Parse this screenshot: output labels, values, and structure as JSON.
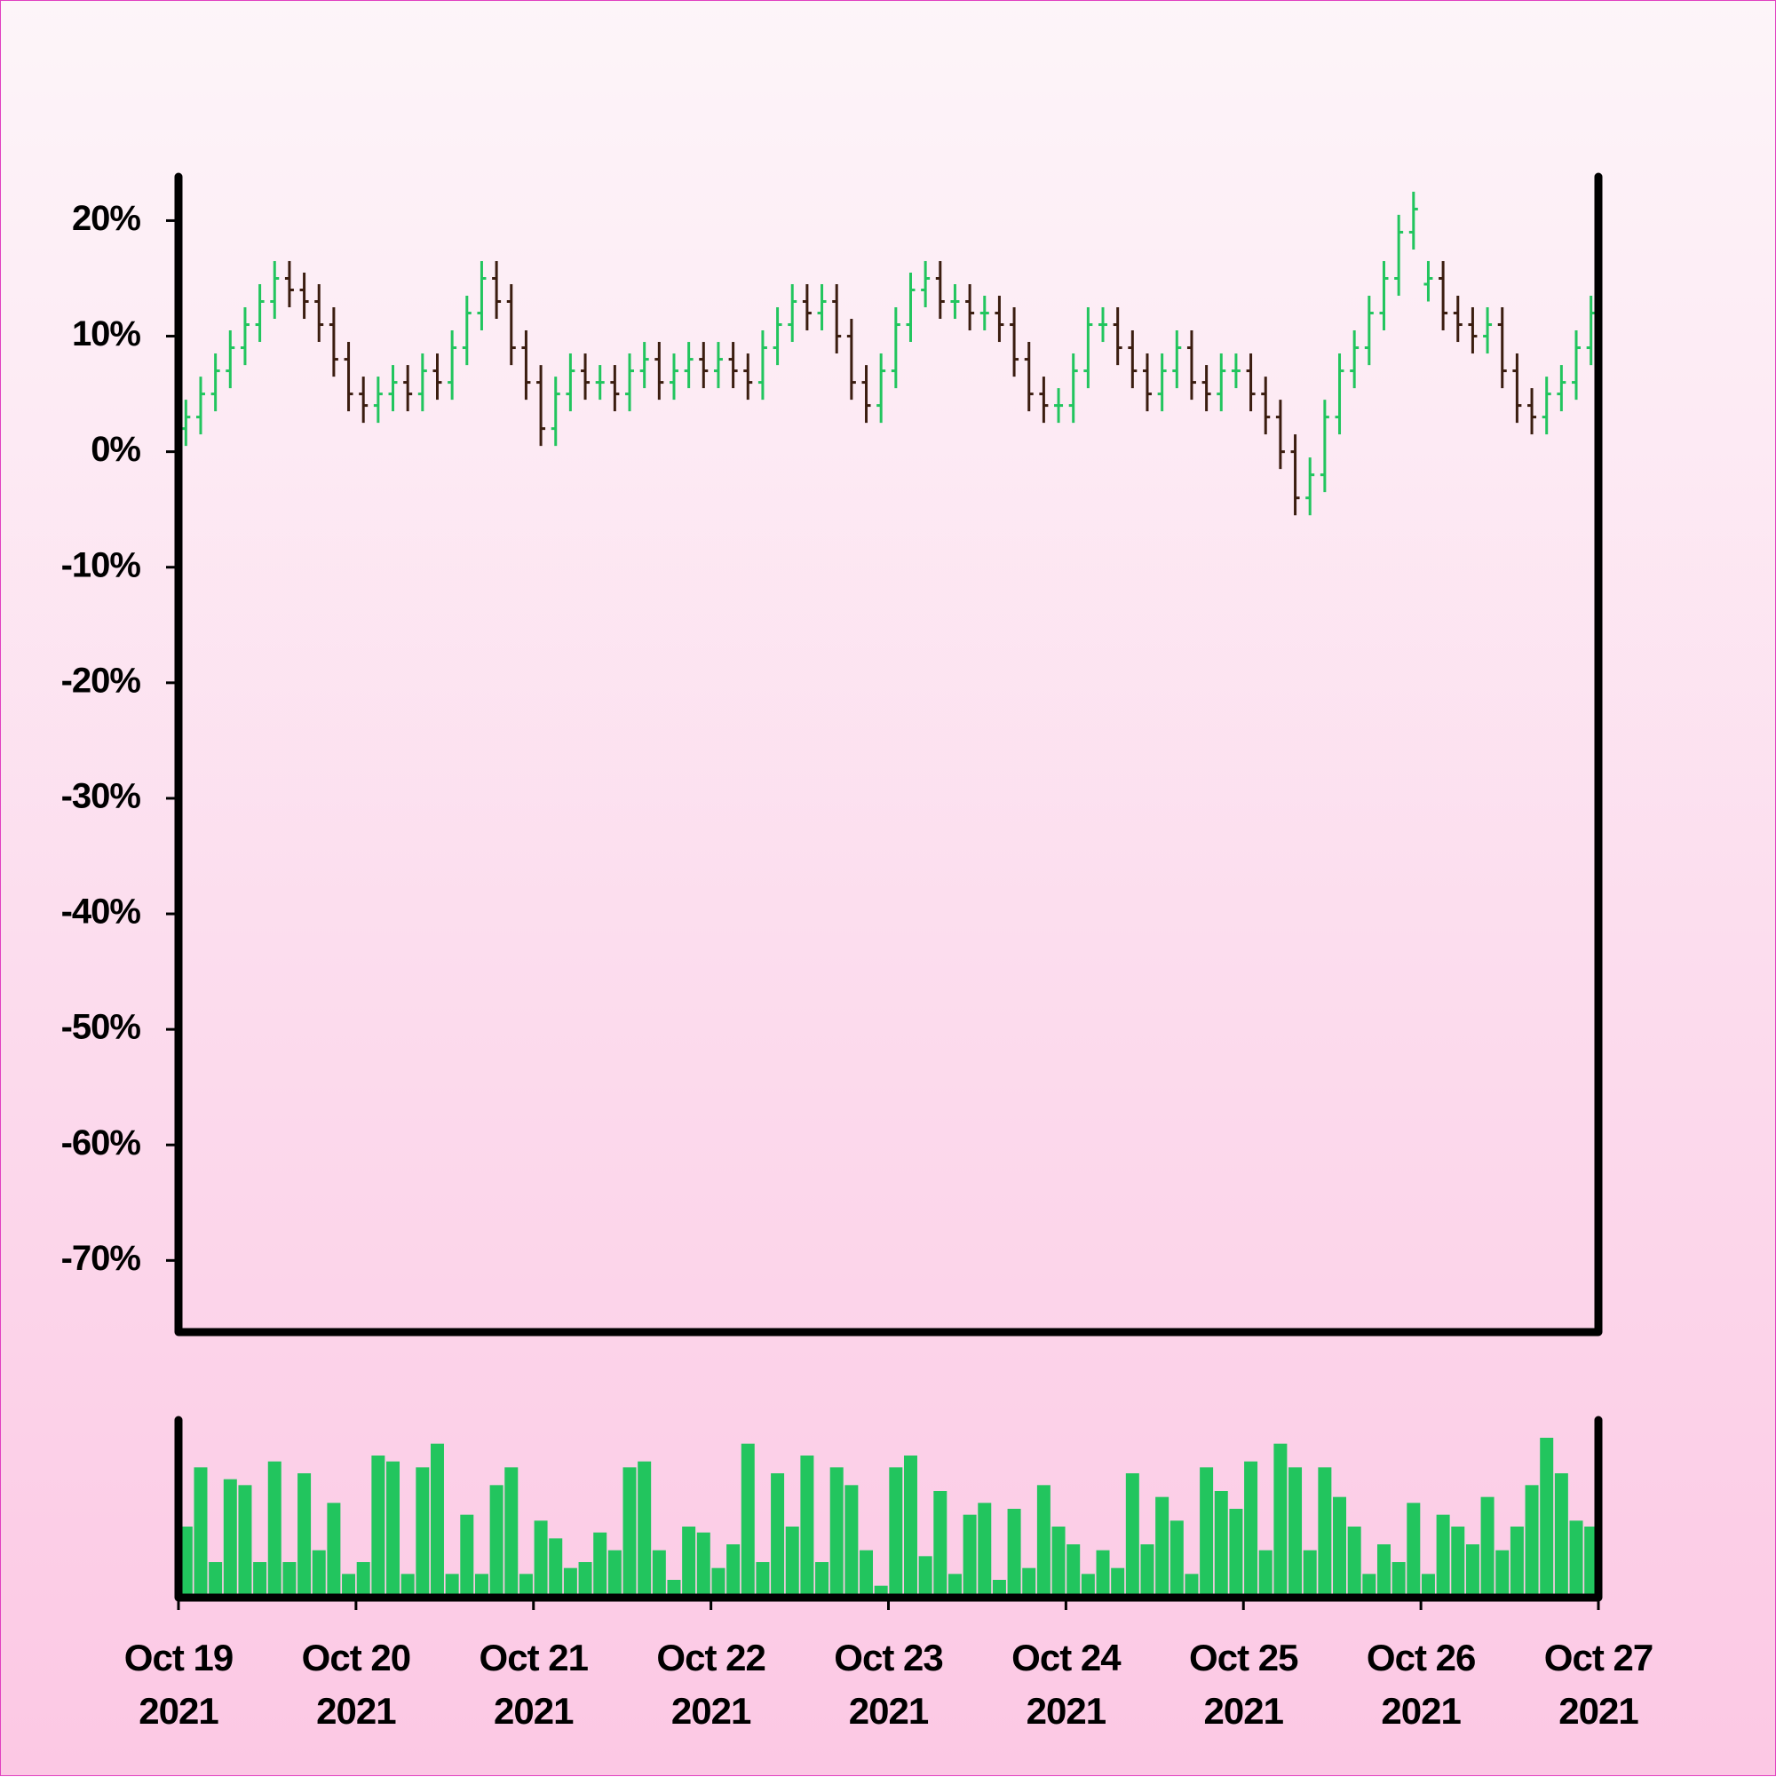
{
  "chart_data": {
    "type": "ohlc",
    "x": [
      0.5,
      1.5,
      2.5,
      3.5,
      4.5,
      5.5,
      6.5,
      7.5,
      8.5,
      9.5,
      10.5,
      11.5,
      12.5,
      13.5,
      14.5,
      15.5,
      16.5,
      17.5,
      18.5,
      19.5,
      20.5,
      21.5,
      22.5,
      23.5,
      24.5,
      25.5,
      26.5,
      27.5,
      28.5,
      29.5,
      30.5,
      31.5,
      32.5,
      33.5,
      34.5,
      35.5,
      36.5,
      37.5,
      38.5,
      39.5,
      40.5,
      41.5,
      42.5,
      43.5,
      44.5,
      45.5,
      46.5,
      47.5,
      48.5,
      49.5,
      50.5,
      51.5,
      52.5,
      53.5,
      54.5,
      55.5,
      56.5,
      57.5,
      58.5,
      59.5,
      60.5,
      61.5,
      62.5,
      63.5,
      64.5,
      65.5,
      66.5,
      67.5,
      68.5,
      69.5,
      70.5,
      71.5,
      72.5,
      73.5,
      74.5,
      75.5,
      76.5,
      77.5,
      78.5,
      79.5,
      80.5,
      81.5,
      82.5,
      83.5,
      84.5,
      85.5,
      86.5,
      87.5,
      88.5,
      89.5,
      90.5,
      91.5,
      92.5,
      93.5,
      94.5,
      95.5
    ],
    "open": [
      2,
      3,
      5,
      7,
      9,
      11,
      13,
      15,
      14,
      13,
      11,
      8,
      5,
      4,
      5,
      6,
      5,
      7,
      6,
      9,
      12,
      15,
      13,
      9,
      6,
      2,
      5,
      7,
      6,
      6,
      5,
      7,
      8,
      6,
      7,
      8,
      7,
      8,
      7,
      6,
      9,
      11,
      13,
      12,
      13,
      10,
      6,
      4,
      7,
      11,
      14,
      15,
      13,
      13,
      12,
      12,
      11,
      8,
      5,
      4,
      4,
      7,
      11,
      11,
      9,
      7,
      5,
      7,
      9,
      6,
      5,
      7,
      7,
      5,
      3,
      0,
      -4,
      -2,
      3,
      7,
      9,
      12,
      15,
      19,
      14.5,
      15,
      12,
      11,
      10,
      11,
      7,
      4,
      3,
      5,
      6,
      9
    ],
    "high": [
      4.5,
      6.5,
      8.5,
      10.5,
      12.5,
      14.5,
      16.5,
      16.5,
      15.5,
      14.5,
      12.5,
      9.5,
      6.5,
      6.5,
      7.5,
      7.5,
      8.5,
      8.5,
      10.5,
      13.5,
      16.5,
      16.5,
      14.5,
      10.5,
      7.5,
      6.5,
      8.5,
      8.5,
      7.5,
      7.5,
      8.5,
      9.5,
      9.5,
      8.5,
      9.5,
      9.5,
      9.5,
      9.5,
      8.5,
      10.5,
      12.5,
      14.5,
      14.5,
      14.5,
      14.5,
      11.5,
      7.5,
      8.5,
      12.5,
      15.5,
      16.5,
      16.5,
      14.5,
      14.5,
      13.5,
      13.5,
      12.5,
      9.5,
      6.5,
      5.5,
      8.5,
      12.5,
      12.5,
      12.5,
      10.5,
      8.5,
      8.5,
      10.5,
      10.5,
      7.5,
      8.5,
      8.5,
      8.5,
      6.5,
      4.5,
      1.5,
      -0.5,
      4.5,
      8.5,
      10.5,
      13.5,
      16.5,
      20.5,
      22.5,
      16.5,
      16.5,
      13.5,
      12.5,
      12.5,
      12.5,
      8.5,
      5.5,
      6.5,
      7.5,
      10.5,
      13.5
    ],
    "low": [
      0.5,
      1.5,
      3.5,
      5.5,
      7.5,
      9.5,
      11.5,
      12.5,
      11.5,
      9.5,
      6.5,
      3.5,
      2.5,
      2.5,
      3.5,
      3.5,
      3.5,
      4.5,
      4.5,
      7.5,
      10.5,
      11.5,
      7.5,
      4.5,
      0.5,
      0.5,
      3.5,
      4.5,
      4.5,
      3.5,
      3.5,
      5.5,
      4.5,
      4.5,
      5.5,
      5.5,
      5.5,
      5.5,
      4.5,
      4.5,
      7.5,
      9.5,
      10.5,
      10.5,
      8.5,
      4.5,
      2.5,
      2.5,
      5.5,
      9.5,
      12.5,
      11.5,
      11.5,
      10.5,
      10.5,
      9.5,
      6.5,
      3.5,
      2.5,
      2.5,
      2.5,
      5.5,
      9.5,
      7.5,
      5.5,
      3.5,
      3.5,
      5.5,
      4.5,
      3.5,
      3.5,
      5.5,
      3.5,
      1.5,
      -1.5,
      -5.5,
      -5.5,
      -3.5,
      1.5,
      5.5,
      7.5,
      10.5,
      13.5,
      17.5,
      13,
      10.5,
      9.5,
      8.5,
      8.5,
      5.5,
      2.5,
      1.5,
      1.5,
      3.5,
      4.5,
      7.5
    ],
    "close": [
      3,
      5,
      7,
      9,
      11,
      13,
      15,
      14,
      13,
      11,
      8,
      5,
      4,
      5,
      6,
      5,
      7,
      6,
      9,
      12,
      15,
      13,
      9,
      6,
      2,
      5,
      7,
      6,
      6,
      5,
      7,
      8,
      6,
      7,
      8,
      7,
      8,
      7,
      6,
      9,
      11,
      13,
      12,
      13,
      10,
      6,
      4,
      7,
      11,
      14,
      15,
      13,
      13,
      12,
      12,
      11,
      8,
      5,
      4,
      4,
      7,
      11,
      11,
      9,
      7,
      5,
      7,
      9,
      6,
      5,
      7,
      7,
      5,
      3,
      0,
      -4,
      -2,
      3,
      7,
      9,
      12,
      15,
      19,
      21,
      15,
      12,
      11,
      10,
      11,
      7,
      4,
      3,
      5,
      6,
      9,
      12
    ],
    "volume": [
      60,
      110,
      30,
      100,
      95,
      30,
      115,
      30,
      105,
      40,
      80,
      20,
      30,
      120,
      115,
      20,
      110,
      130,
      20,
      70,
      20,
      95,
      110,
      20,
      65,
      50,
      25,
      30,
      55,
      40,
      110,
      115,
      40,
      15,
      60,
      55,
      25,
      45,
      130,
      30,
      105,
      60,
      120,
      30,
      110,
      95,
      40,
      10,
      110,
      120,
      35,
      90,
      20,
      70,
      80,
      15,
      75,
      25,
      95,
      60,
      45,
      20,
      40,
      25,
      105,
      45,
      85,
      65,
      20,
      110,
      90,
      75,
      115,
      40,
      130,
      110,
      40,
      110,
      85,
      60,
      20,
      45,
      30,
      80,
      20,
      70,
      60,
      45,
      85,
      40,
      60,
      95,
      135,
      105,
      65,
      60
    ],
    "up_color": "#22c55e",
    "down_color": "#3b1d10",
    "volume_color": "#22c55e",
    "xlim": [
      0,
      96
    ],
    "xticks": [
      {
        "value": 0,
        "label": "Oct 19\n2021"
      },
      {
        "value": 12,
        "label": "Oct 20\n2021"
      },
      {
        "value": 24,
        "label": "Oct 21\n2021"
      },
      {
        "value": 36,
        "label": "Oct 22\n2021"
      },
      {
        "value": 48,
        "label": "Oct 23\n2021"
      },
      {
        "value": 60,
        "label": "Oct 24\n2021"
      },
      {
        "value": 72,
        "label": "Oct 25\n2021"
      },
      {
        "value": 84,
        "label": "Oct 26\n2021"
      },
      {
        "value": 96,
        "label": "Oct 27\n2021"
      }
    ],
    "ylim": [
      -76.2,
      23.8
    ],
    "yticks": [
      {
        "value": 20,
        "label": "20%"
      },
      {
        "value": 10,
        "label": "10%"
      },
      {
        "value": 0,
        "label": "0%"
      },
      {
        "value": -10,
        "label": "-10%"
      },
      {
        "value": -20,
        "label": "-20%"
      },
      {
        "value": -30,
        "label": "-30%"
      },
      {
        "value": -40,
        "label": "-40%"
      },
      {
        "value": -50,
        "label": "-50%"
      },
      {
        "value": -60,
        "label": "-60%"
      },
      {
        "value": -70,
        "label": "-70%"
      }
    ],
    "volume_ylim": [
      0,
      150
    ]
  }
}
